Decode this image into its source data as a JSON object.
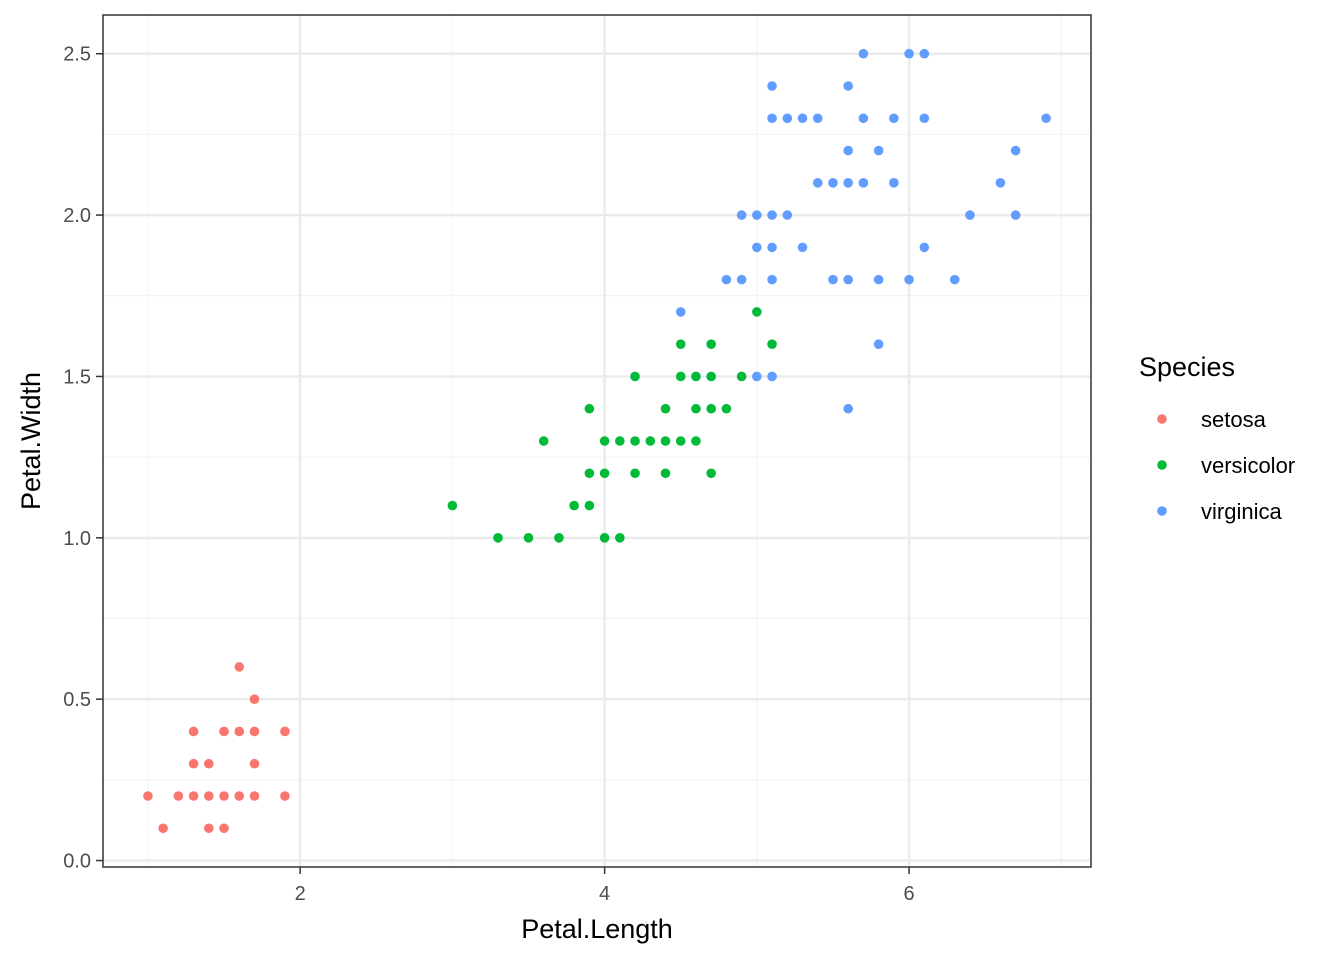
{
  "chart_data": {
    "type": "scatter",
    "xlabel": "Petal.Length",
    "ylabel": "Petal.Width",
    "xlim": [
      0.705,
      7.195
    ],
    "ylim": [
      -0.02,
      2.62
    ],
    "x_ticks": [
      2,
      4,
      6
    ],
    "x_tick_labels": [
      "2",
      "4",
      "6"
    ],
    "y_ticks": [
      0.0,
      0.5,
      1.0,
      1.5,
      2.0,
      2.5
    ],
    "y_tick_labels": [
      "0.0",
      "0.5",
      "1.0",
      "1.5",
      "2.0",
      "2.5"
    ],
    "grid": true,
    "legend": {
      "title": "Species",
      "position": "right"
    },
    "series": [
      {
        "name": "setosa",
        "color": "#F8766D",
        "points": [
          [
            1.0,
            0.2
          ],
          [
            1.1,
            0.1
          ],
          [
            1.2,
            0.2
          ],
          [
            1.3,
            0.2
          ],
          [
            1.3,
            0.3
          ],
          [
            1.3,
            0.4
          ],
          [
            1.4,
            0.1
          ],
          [
            1.4,
            0.2
          ],
          [
            1.4,
            0.3
          ],
          [
            1.5,
            0.1
          ],
          [
            1.5,
            0.2
          ],
          [
            1.5,
            0.4
          ],
          [
            1.6,
            0.2
          ],
          [
            1.6,
            0.4
          ],
          [
            1.6,
            0.6
          ],
          [
            1.7,
            0.2
          ],
          [
            1.7,
            0.3
          ],
          [
            1.7,
            0.4
          ],
          [
            1.7,
            0.5
          ],
          [
            1.9,
            0.2
          ],
          [
            1.9,
            0.4
          ]
        ]
      },
      {
        "name": "versicolor",
        "color": "#00BA38",
        "points": [
          [
            3.0,
            1.1
          ],
          [
            3.3,
            1.0
          ],
          [
            3.5,
            1.0
          ],
          [
            3.6,
            1.3
          ],
          [
            3.7,
            1.0
          ],
          [
            3.8,
            1.1
          ],
          [
            3.9,
            1.1
          ],
          [
            3.9,
            1.2
          ],
          [
            3.9,
            1.4
          ],
          [
            4.0,
            1.0
          ],
          [
            4.0,
            1.2
          ],
          [
            4.0,
            1.3
          ],
          [
            4.1,
            1.0
          ],
          [
            4.1,
            1.3
          ],
          [
            4.2,
            1.2
          ],
          [
            4.2,
            1.3
          ],
          [
            4.2,
            1.5
          ],
          [
            4.3,
            1.3
          ],
          [
            4.4,
            1.2
          ],
          [
            4.4,
            1.3
          ],
          [
            4.4,
            1.4
          ],
          [
            4.5,
            1.3
          ],
          [
            4.5,
            1.5
          ],
          [
            4.5,
            1.6
          ],
          [
            4.6,
            1.3
          ],
          [
            4.6,
            1.4
          ],
          [
            4.6,
            1.5
          ],
          [
            4.7,
            1.2
          ],
          [
            4.7,
            1.4
          ],
          [
            4.7,
            1.5
          ],
          [
            4.7,
            1.6
          ],
          [
            4.8,
            1.4
          ],
          [
            4.9,
            1.5
          ],
          [
            5.0,
            1.7
          ],
          [
            5.1,
            1.6
          ]
        ]
      },
      {
        "name": "virginica",
        "color": "#619CFF",
        "points": [
          [
            4.5,
            1.7
          ],
          [
            4.8,
            1.8
          ],
          [
            4.9,
            1.8
          ],
          [
            4.9,
            2.0
          ],
          [
            5.0,
            1.5
          ],
          [
            5.0,
            1.9
          ],
          [
            5.0,
            2.0
          ],
          [
            5.1,
            1.5
          ],
          [
            5.1,
            1.8
          ],
          [
            5.1,
            1.9
          ],
          [
            5.1,
            2.0
          ],
          [
            5.1,
            2.3
          ],
          [
            5.1,
            2.4
          ],
          [
            5.2,
            2.0
          ],
          [
            5.2,
            2.3
          ],
          [
            5.3,
            1.9
          ],
          [
            5.3,
            2.3
          ],
          [
            5.4,
            2.1
          ],
          [
            5.4,
            2.3
          ],
          [
            5.5,
            1.8
          ],
          [
            5.5,
            2.1
          ],
          [
            5.6,
            1.4
          ],
          [
            5.6,
            1.8
          ],
          [
            5.6,
            2.1
          ],
          [
            5.6,
            2.2
          ],
          [
            5.6,
            2.4
          ],
          [
            5.7,
            2.1
          ],
          [
            5.7,
            2.3
          ],
          [
            5.7,
            2.5
          ],
          [
            5.8,
            1.6
          ],
          [
            5.8,
            1.8
          ],
          [
            5.8,
            2.2
          ],
          [
            5.9,
            2.1
          ],
          [
            5.9,
            2.3
          ],
          [
            6.0,
            1.8
          ],
          [
            6.0,
            2.5
          ],
          [
            6.1,
            1.9
          ],
          [
            6.1,
            2.3
          ],
          [
            6.1,
            2.5
          ],
          [
            6.3,
            1.8
          ],
          [
            6.4,
            2.0
          ],
          [
            6.6,
            2.1
          ],
          [
            6.7,
            2.0
          ],
          [
            6.7,
            2.2
          ],
          [
            6.9,
            2.3
          ]
        ]
      }
    ]
  }
}
